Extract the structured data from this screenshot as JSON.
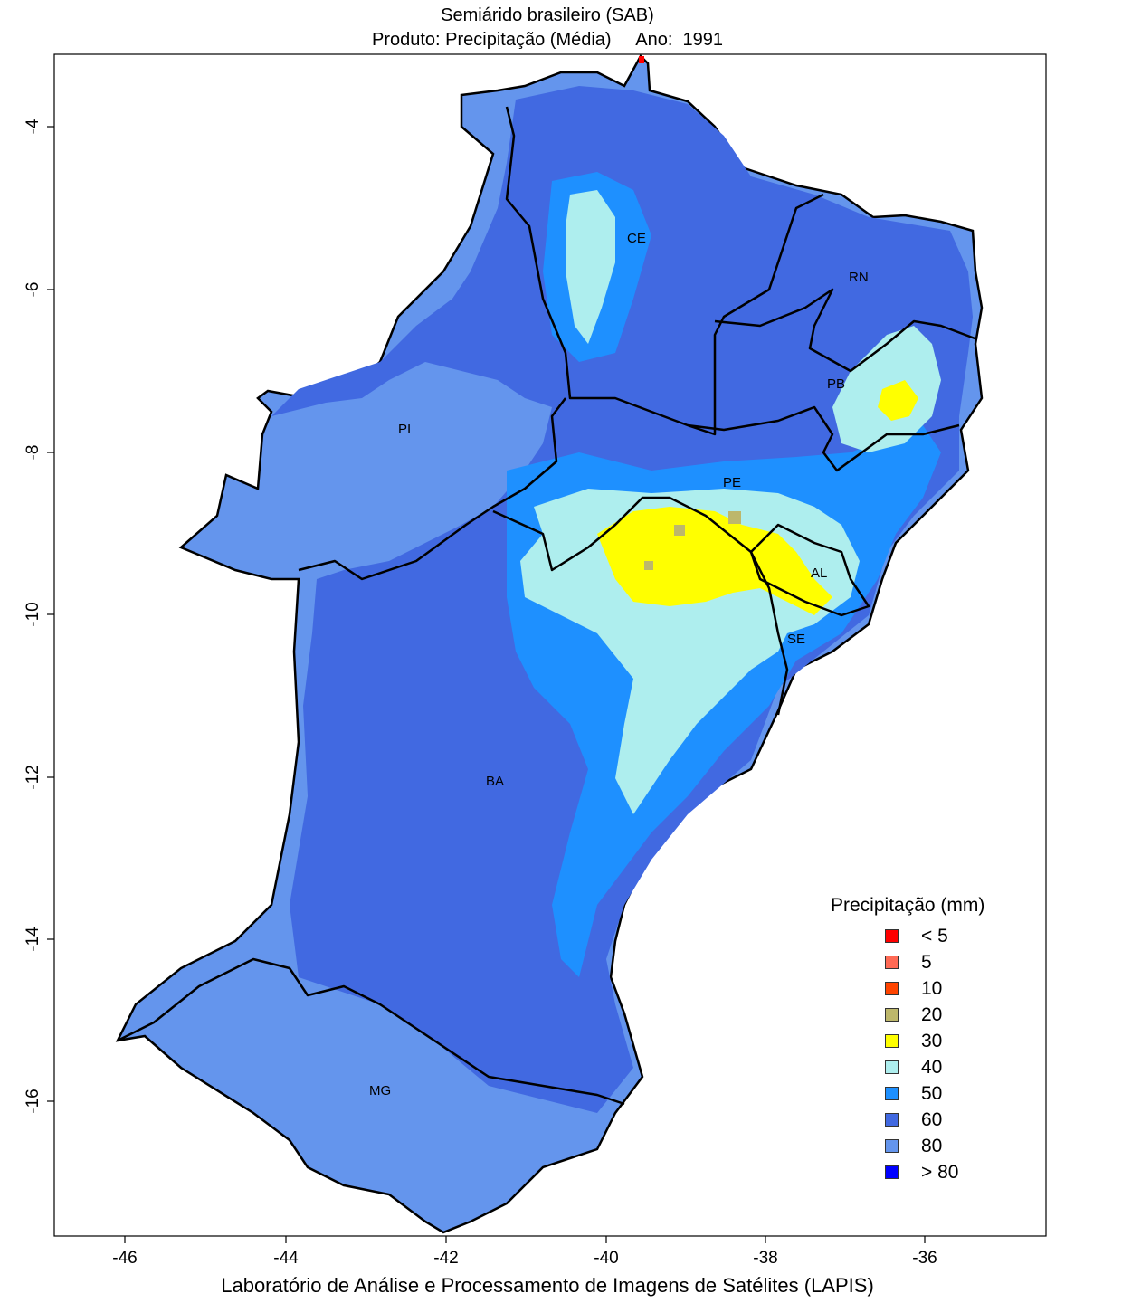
{
  "title": {
    "line1": "Semiárido brasileiro (SAB)",
    "line2": "Produto: Precipitação (Média)     Ano:  1991"
  },
  "footer": "Laboratório de Análise e Processamento de Imagens de Satélites (LAPIS)",
  "axes": {
    "x_ticks": [
      "-46",
      "-44",
      "-42",
      "-40",
      "-38",
      "-36"
    ],
    "y_ticks": [
      "-4",
      "-6",
      "-8",
      "-10",
      "-12",
      "-14",
      "-16"
    ]
  },
  "states": [
    "CE",
    "RN",
    "PB",
    "PI",
    "PE",
    "AL",
    "SE",
    "BA",
    "MG"
  ],
  "legend": {
    "title": "Precipitação (mm)",
    "items": [
      {
        "label": "< 5",
        "color": "#ff0000"
      },
      {
        "label": "5",
        "color": "#ff6a55"
      },
      {
        "label": "10",
        "color": "#ff4400"
      },
      {
        "label": "20",
        "color": "#bdb76b"
      },
      {
        "label": "30",
        "color": "#ffff00"
      },
      {
        "label": "40",
        "color": "#aeeeee"
      },
      {
        "label": "50",
        "color": "#1e90ff"
      },
      {
        "label": "60",
        "color": "#4169e1"
      },
      {
        "label": "80",
        "color": "#6495ed"
      },
      {
        "label": "> 80",
        "color": "#0000ff"
      }
    ]
  },
  "colors": {
    "region_80": "#6495ed",
    "region_60": "#4169e1",
    "region_50": "#1e90ff",
    "region_40": "#aeeeee",
    "region_30": "#ffff00",
    "region_20": "#bdb76b"
  }
}
